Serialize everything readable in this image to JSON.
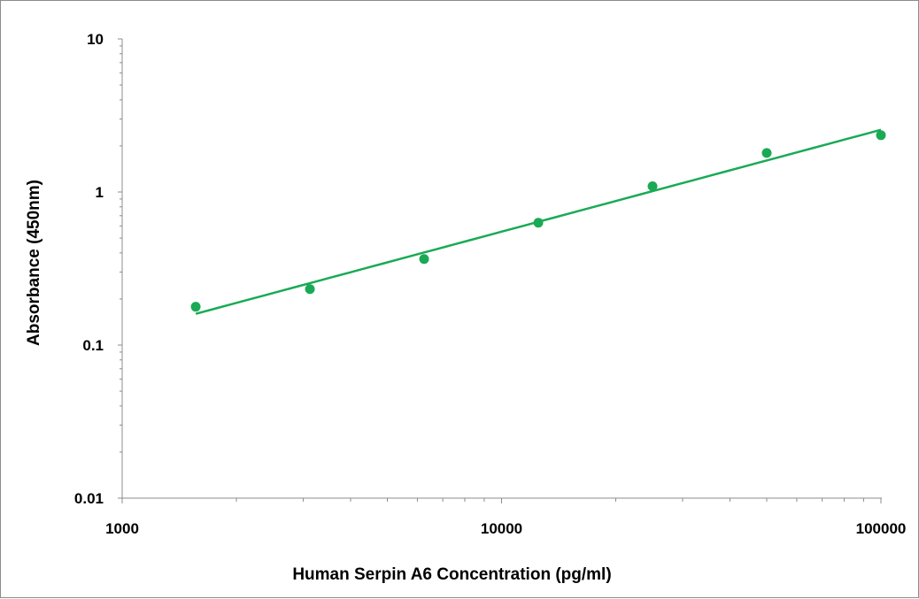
{
  "chart_data": {
    "type": "scatter",
    "title": "",
    "xlabel": "Human Serpin A6 Concentration (pg/ml)",
    "ylabel": "Absorbance (450nm)",
    "x_scale": "log",
    "y_scale": "log",
    "xlim": [
      1000,
      100000
    ],
    "ylim": [
      0.01,
      10
    ],
    "x_ticks": [
      1000,
      10000,
      100000
    ],
    "x_tick_labels": [
      "1000",
      "10000",
      "100000"
    ],
    "y_ticks": [
      0.01,
      0.1,
      1,
      10
    ],
    "y_tick_labels": [
      "0.01",
      "0.1",
      "1",
      "10"
    ],
    "grid": false,
    "series": [
      {
        "points": [
          {
            "x": 1562.5,
            "y": 0.178
          },
          {
            "x": 3125,
            "y": 0.232
          },
          {
            "x": 6250,
            "y": 0.365
          },
          {
            "x": 12500,
            "y": 0.63
          },
          {
            "x": 25000,
            "y": 1.09
          },
          {
            "x": 50000,
            "y": 1.8
          },
          {
            "x": 100000,
            "y": 2.35
          }
        ],
        "trendline": {
          "type": "power",
          "x_range": [
            1562.5,
            100000
          ],
          "y_at_start": 0.16,
          "y_at_end": 2.55
        },
        "color": "#1aaa55"
      }
    ]
  }
}
